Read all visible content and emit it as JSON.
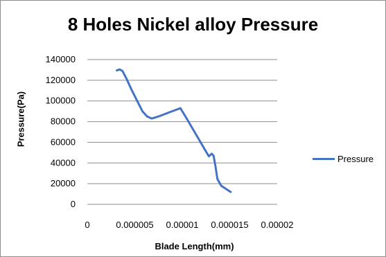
{
  "chart_data": {
    "type": "line",
    "title": "8 Holes Nickel alloy Pressure",
    "xlabel": "Blade Length(mm)",
    "ylabel": "Pressure(Pa)",
    "xlim": [
      0,
      2e-05
    ],
    "ylim": [
      0,
      140000
    ],
    "x_ticks": [
      0,
      5e-06,
      1e-05,
      1.5e-05,
      2e-05
    ],
    "x_tick_labels": [
      "0",
      "0.000005",
      "0.00001",
      "0.000015",
      "0.00002"
    ],
    "y_ticks": [
      0,
      20000,
      40000,
      60000,
      80000,
      100000,
      120000,
      140000
    ],
    "y_tick_labels": [
      "0",
      "20000",
      "40000",
      "60000",
      "80000",
      "100000",
      "120000",
      "140000"
    ],
    "grid": true,
    "legend_position": "right",
    "series": [
      {
        "name": "Pressure",
        "color": "#4472c4",
        "x": [
          3.1e-06,
          3.4e-06,
          3.7e-06,
          4.1e-06,
          4.6e-06,
          5.2e-06,
          5.8e-06,
          6.3e-06,
          6.8e-06,
          7.5e-06,
          8.5e-06,
          9.8e-06,
          1.04e-05,
          1.11e-05,
          1.18e-05,
          1.25e-05,
          1.28e-05,
          1.31e-05,
          1.33e-05,
          1.35e-05,
          1.37e-05,
          1.41e-05,
          1.46e-05,
          1.51e-05
        ],
        "y": [
          129500,
          130500,
          129000,
          122000,
          112000,
          101000,
          90000,
          85000,
          83000,
          85000,
          88500,
          93000,
          84000,
          73000,
          62000,
          51000,
          46500,
          49000,
          47000,
          37000,
          24500,
          18000,
          15000,
          12000
        ]
      }
    ]
  },
  "legend": {
    "label": "Pressure"
  }
}
